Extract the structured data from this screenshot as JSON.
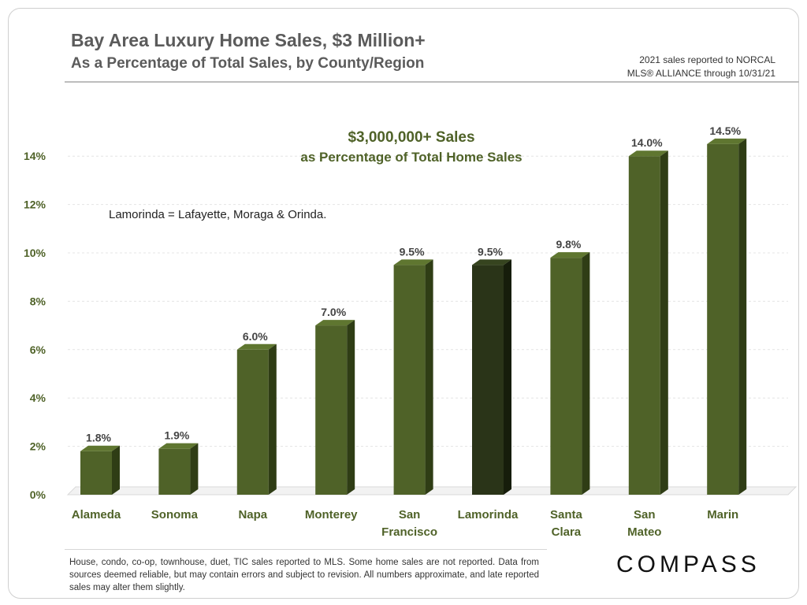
{
  "header": {
    "title": "Bay Area Luxury Home Sales, $3 Million+",
    "subtitle": "As a Percentage of Total Sales, by County/Region",
    "source_line1": "2021 sales reported to NORCAL",
    "source_line2": "MLS® ALLIANCE through 10/31/21"
  },
  "chart_data": {
    "type": "bar",
    "title": "$3,000,000+ Sales",
    "subtitle": "as Percentage of Total Home Sales",
    "annotation": "Lamorinda = Lafayette, Moraga & Orinda.",
    "categories": [
      [
        "Alameda"
      ],
      [
        "Sonoma"
      ],
      [
        "Napa"
      ],
      [
        "Monterey"
      ],
      [
        "San",
        "Francisco"
      ],
      [
        "Lamorinda"
      ],
      [
        "Santa",
        "Clara"
      ],
      [
        "San",
        "Mateo"
      ],
      [
        "Marin"
      ]
    ],
    "values": [
      1.8,
      1.9,
      6.0,
      7.0,
      9.5,
      9.5,
      9.8,
      14.0,
      14.5
    ],
    "value_labels": [
      "1.8%",
      "1.9%",
      "6.0%",
      "7.0%",
      "9.5%",
      "9.5%",
      "9.8%",
      "14.0%",
      "14.5%"
    ],
    "highlight_index": 5,
    "ylim": [
      0,
      14
    ],
    "yticks": [
      0,
      2,
      4,
      6,
      8,
      10,
      12,
      14
    ],
    "ytick_labels": [
      "0%",
      "2%",
      "4%",
      "6%",
      "8%",
      "10%",
      "12%",
      "14%"
    ],
    "grid": true,
    "colors": {
      "bar": "#4f6228",
      "bar_top": "#5f7630",
      "bar_side": "#2f3d15",
      "highlight": "#2a3418",
      "highlight_top": "#36441f",
      "highlight_side": "#161d0b",
      "text": "#4f6228"
    }
  },
  "footer": {
    "note": "House, condo, co-op, townhouse, duet, TIC sales reported to MLS. Some home sales are not reported. Data from sources deemed reliable, but may contain errors and subject to revision. All numbers approximate, and late reported sales may alter them slightly.",
    "brand": "COMPASS"
  }
}
